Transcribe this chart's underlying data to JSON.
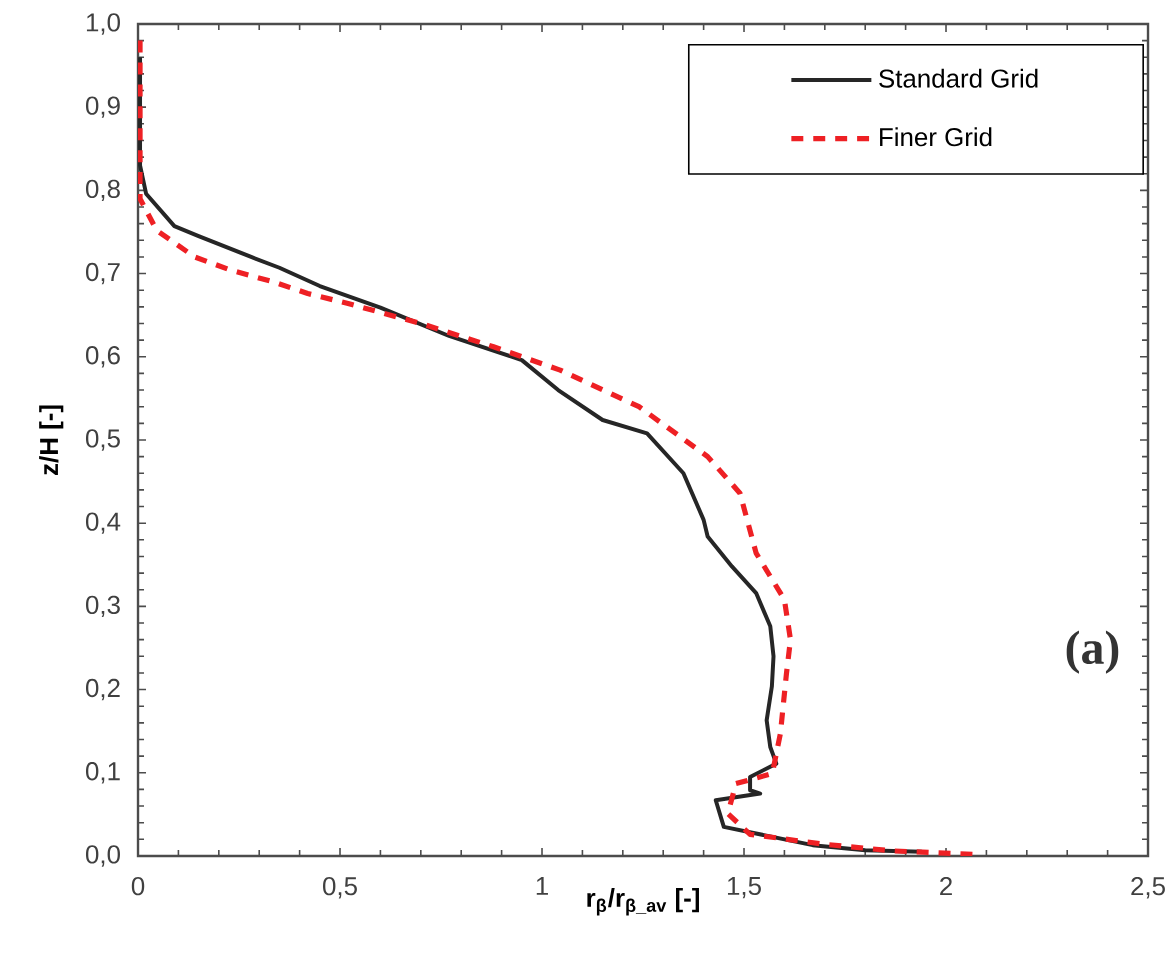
{
  "chart_data": {
    "type": "line",
    "xlabel": "r$_{β}$/r$_{β_av}$ [-]",
    "ylabel": "z/H [-]",
    "xlim": [
      0,
      2.5
    ],
    "ylim": [
      0,
      1.0
    ],
    "xticks": [
      0,
      {
        "value": 0.5,
        "label": "0,5"
      },
      1,
      {
        "value": 1.5,
        "label": "1,5"
      },
      2,
      {
        "value": 2.5,
        "label": "2,5"
      }
    ],
    "yticks": [
      {
        "value": 0,
        "label": "0,0"
      },
      {
        "value": 0.1,
        "label": "0,1"
      },
      {
        "value": 0.2,
        "label": "0,2"
      },
      {
        "value": 0.3,
        "label": "0,3"
      },
      {
        "value": 0.4,
        "label": "0,4"
      },
      {
        "value": 0.5,
        "label": "0,5"
      },
      {
        "value": 0.6,
        "label": "0,6"
      },
      {
        "value": 0.7,
        "label": "0,7"
      },
      {
        "value": 0.8,
        "label": "0,8"
      },
      {
        "value": 0.9,
        "label": "0,9"
      },
      {
        "value": 1.0,
        "label": "1,0"
      }
    ],
    "legend": "top right",
    "marker": "none",
    "grid": false,
    "annotations": [
      "(a)"
    ],
    "series": [
      {
        "name": "Standard Grid",
        "color": "#262626",
        "line_style": "solid",
        "x": [
          0.005,
          0.005,
          0.02,
          0.09,
          0.15,
          0.28,
          0.35,
          0.45,
          0.6,
          0.77,
          0.95,
          1.04,
          1.15,
          1.26,
          1.35,
          1.4,
          1.41,
          1.47,
          1.53,
          1.565,
          1.573,
          1.569,
          1.556,
          1.565,
          1.58,
          1.515,
          1.515,
          1.54,
          1.43,
          1.45,
          1.67,
          1.8,
          1.94
        ],
        "values": [
          0.96,
          0.83,
          0.796,
          0.757,
          0.745,
          0.72,
          0.707,
          0.685,
          0.659,
          0.625,
          0.596,
          0.56,
          0.524,
          0.508,
          0.46,
          0.404,
          0.384,
          0.348,
          0.316,
          0.276,
          0.24,
          0.204,
          0.163,
          0.131,
          0.111,
          0.095,
          0.079,
          0.075,
          0.067,
          0.035,
          0.013,
          0.007,
          0.005
        ]
      },
      {
        "name": "Finer Grid",
        "color": "#ee2024",
        "line_style": "dashed",
        "x": [
          0.005,
          0.005,
          0.046,
          0.14,
          0.23,
          0.335,
          0.42,
          0.52,
          0.7,
          0.88,
          1.045,
          1.24,
          1.41,
          1.49,
          1.53,
          1.6,
          1.615,
          1.605,
          1.59,
          1.57,
          1.48,
          1.46,
          1.515,
          1.7,
          1.87,
          2.07
        ],
        "values": [
          0.98,
          0.79,
          0.752,
          0.72,
          0.704,
          0.69,
          0.676,
          0.664,
          0.64,
          0.612,
          0.584,
          0.54,
          0.48,
          0.436,
          0.364,
          0.308,
          0.26,
          0.219,
          0.147,
          0.099,
          0.087,
          0.051,
          0.026,
          0.014,
          0.006,
          0.002
        ]
      }
    ]
  }
}
